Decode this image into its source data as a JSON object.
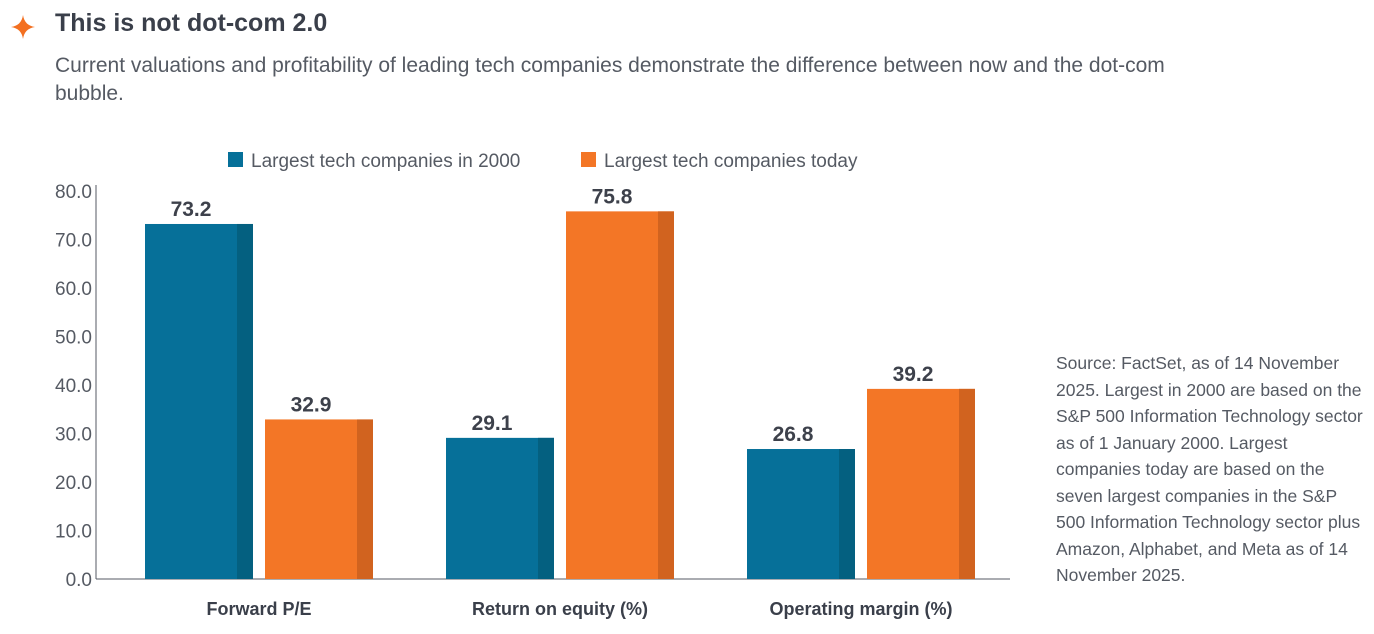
{
  "header": {
    "title": "This is not dot-com 2.0",
    "subtitle": "Current valuations and profitability of leading tech companies demonstrate the difference between now and the dot-com bubble.",
    "icon": "sparkle-icon",
    "accent": "#f37021"
  },
  "source": "Source: FactSet, as of 14 November 2025. Largest in 2000 are based on the S&P 500 Information Technology sector as of 1 January 2000. Largest companies today are based on the seven largest companies in the S&P 500 Information Technology sector plus Amazon, Alphabet, and Meta as of 14 November 2025.",
  "chart_data": {
    "type": "bar",
    "title": "",
    "xlabel": "",
    "ylabel": "",
    "ylim": [
      0,
      80
    ],
    "yticks": [
      "0.0",
      "10.0",
      "20.0",
      "30.0",
      "40.0",
      "50.0",
      "60.0",
      "70.0",
      "80.0"
    ],
    "grid": false,
    "legend_position": "top",
    "categories": [
      "Forward P/E",
      "Return on equity (%)",
      "Operating margin (%)"
    ],
    "series": [
      {
        "name": "Largest tech companies in 2000",
        "values": [
          73.2,
          29.1,
          26.8
        ],
        "labels": [
          "73.2",
          "29.1",
          "26.8"
        ],
        "color": "#067099",
        "shade": "#046080"
      },
      {
        "name": "Largest tech companies today",
        "values": [
          32.9,
          75.8,
          39.2
        ],
        "labels": [
          "32.9",
          "75.8",
          "39.2"
        ],
        "color": "#f37626",
        "shade": "#d1631f"
      }
    ]
  }
}
